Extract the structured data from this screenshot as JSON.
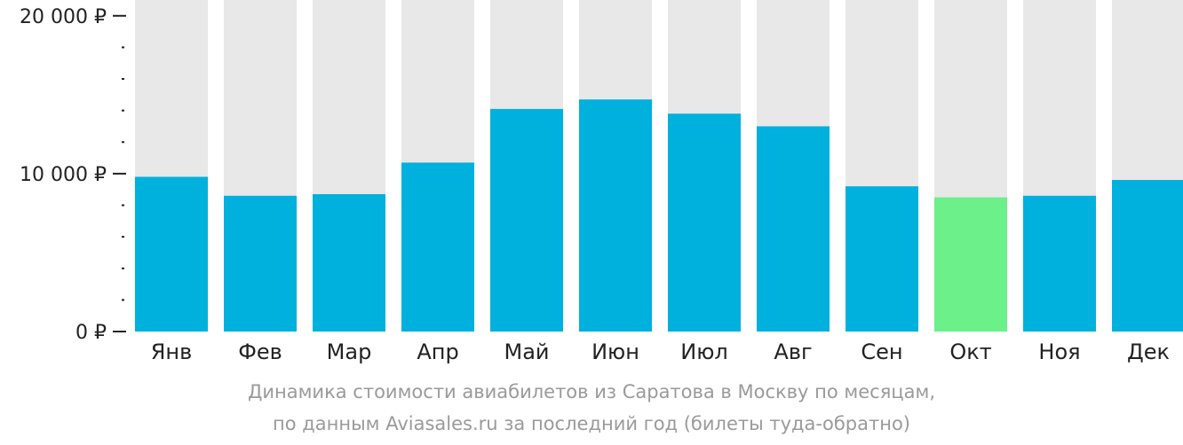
{
  "caption": {
    "line1": "Динамика стоимости авиабилетов из Саратова в Москву по месяцам,",
    "line2": "по данным Aviasales.ru за последний год (билеты туда-обратно)"
  },
  "colors": {
    "bar": "#00b0dd",
    "highlight": "#6bf08a",
    "track": "#e8e8e8",
    "axis": "#222222"
  },
  "chart_data": {
    "type": "bar",
    "categories": [
      "Янв",
      "Фев",
      "Мар",
      "Апр",
      "Май",
      "Июн",
      "Июл",
      "Авг",
      "Сен",
      "Окт",
      "Ноя",
      "Дек"
    ],
    "values": [
      9800,
      8600,
      8700,
      10700,
      14100,
      14700,
      13800,
      13000,
      9200,
      8500,
      8600,
      9600
    ],
    "highlight_index": 9,
    "ylim": [
      0,
      21000
    ],
    "yticks": [
      {
        "value": 0,
        "label": "0 ₽"
      },
      {
        "value": 10000,
        "label": "10 000 ₽"
      },
      {
        "value": 20000,
        "label": "20 000 ₽"
      }
    ],
    "minor_tick_step": 2000,
    "xlabel": "",
    "ylabel": "",
    "grid": false
  }
}
